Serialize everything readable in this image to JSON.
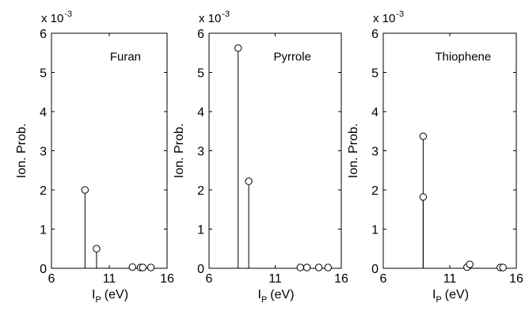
{
  "chart_data": [
    {
      "type": "scatter",
      "style": "stem",
      "compound_label": "Furan",
      "ylabel": "Ion. Prob.",
      "xlabel_main": "I",
      "xlabel_sub": "P",
      "xlabel_unit": "(eV)",
      "multiplier_base": "x 10",
      "multiplier_exp": "-3",
      "xlim": [
        6,
        16
      ],
      "ylim": [
        0,
        6
      ],
      "xticks": [
        6,
        11,
        16
      ],
      "yticks": [
        0,
        1,
        2,
        3,
        4,
        5,
        6
      ],
      "grid": false,
      "points": [
        {
          "x": 8.9,
          "y": 2.0
        },
        {
          "x": 9.9,
          "y": 0.5
        },
        {
          "x": 13.0,
          "y": 0.03
        },
        {
          "x": 13.7,
          "y": 0.02
        },
        {
          "x": 13.9,
          "y": 0.02
        },
        {
          "x": 14.6,
          "y": 0.02
        }
      ]
    },
    {
      "type": "scatter",
      "style": "stem",
      "compound_label": "Pyrrole",
      "ylabel": "Ion. Prob.",
      "xlabel_main": "I",
      "xlabel_sub": "P",
      "xlabel_unit": "(eV)",
      "multiplier_base": "x 10",
      "multiplier_exp": "-3",
      "xlim": [
        6,
        16
      ],
      "ylim": [
        0,
        6
      ],
      "xticks": [
        6,
        11,
        16
      ],
      "yticks": [
        0,
        1,
        2,
        3,
        4,
        5,
        6
      ],
      "grid": false,
      "points": [
        {
          "x": 8.2,
          "y": 5.62
        },
        {
          "x": 9.0,
          "y": 2.22
        },
        {
          "x": 12.9,
          "y": 0.02
        },
        {
          "x": 13.4,
          "y": 0.02
        },
        {
          "x": 14.3,
          "y": 0.02
        },
        {
          "x": 15.0,
          "y": 0.02
        }
      ]
    },
    {
      "type": "scatter",
      "style": "stem",
      "compound_label": "Thiophene",
      "ylabel": "Ion. Prob.",
      "xlabel_main": "I",
      "xlabel_sub": "P",
      "xlabel_unit": "(eV)",
      "multiplier_base": "x 10",
      "multiplier_exp": "-3",
      "xlim": [
        6,
        16
      ],
      "ylim": [
        0,
        6
      ],
      "xticks": [
        6,
        11,
        16
      ],
      "yticks": [
        0,
        1,
        2,
        3,
        4,
        5,
        6
      ],
      "grid": false,
      "points": [
        {
          "x": 9.0,
          "y": 3.37
        },
        {
          "x": 9.0,
          "y": 1.82
        },
        {
          "x": 12.3,
          "y": 0.03
        },
        {
          "x": 12.5,
          "y": 0.1
        },
        {
          "x": 14.8,
          "y": 0.02
        },
        {
          "x": 15.0,
          "y": 0.02
        }
      ]
    }
  ]
}
